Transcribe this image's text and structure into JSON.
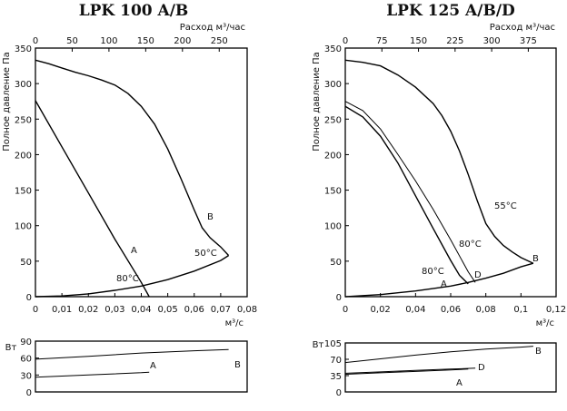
{
  "chart_data": [
    {
      "type": "line",
      "title": "LPK 100 A/B",
      "xlabel": "м³/с",
      "ylabel": "Полное давление Па",
      "x2label": "Расход м³/час",
      "xlim": [
        0,
        0.08
      ],
      "ylim": [
        0,
        350
      ],
      "x2lim": [
        0,
        288
      ],
      "xticks": [
        "0",
        "0,01",
        "0,02",
        "0,03",
        "0,04",
        "0,05",
        "0,06",
        "0,07",
        "0,08"
      ],
      "x2ticks": [
        "0",
        "50",
        "100",
        "150",
        "200",
        "250"
      ],
      "yticks": [
        "0",
        "50",
        "100",
        "150",
        "200",
        "250",
        "300",
        "350"
      ],
      "grid": false,
      "series": [
        {
          "name": "B",
          "x": [
            0,
            0.005,
            0.01,
            0.015,
            0.02,
            0.025,
            0.03,
            0.035,
            0.04,
            0.045,
            0.05,
            0.055,
            0.06,
            0.063,
            0.066,
            0.07,
            0.073
          ],
          "y": [
            333,
            328,
            322,
            316,
            311,
            305,
            298,
            286,
            268,
            243,
            208,
            166,
            122,
            97,
            83,
            70,
            58
          ]
        },
        {
          "name": "A",
          "x": [
            0,
            0.01,
            0.02,
            0.03,
            0.04,
            0.043
          ],
          "y": [
            276,
            211,
            146,
            81,
            20,
            0
          ]
        },
        {
          "name": "",
          "x": [
            0,
            0.01,
            0.02,
            0.03,
            0.04,
            0.05,
            0.06,
            0.07,
            0.073
          ],
          "y": [
            0,
            1,
            4,
            9,
            15,
            24,
            36,
            51,
            58
          ]
        }
      ],
      "annotations": [
        "B",
        "A",
        "50°C",
        "80°C"
      ],
      "power": {
        "ylabel": "Вт",
        "ylim": [
          0,
          90
        ],
        "yticks": [
          "0",
          "30",
          "60",
          "90"
        ],
        "series": [
          {
            "name": "B",
            "x": [
              0,
              0.02,
              0.04,
              0.06,
              0.073
            ],
            "y": [
              58,
              63,
              69,
              73,
              75
            ]
          },
          {
            "name": "A",
            "x": [
              0,
              0.02,
              0.04,
              0.043
            ],
            "y": [
              26,
              30,
              34,
              35
            ]
          }
        ]
      }
    },
    {
      "type": "line",
      "title": "LPK 125 A/B/D",
      "xlabel": "м³/с",
      "ylabel": "Полное давление Па",
      "x2label": "Расход м³/час",
      "xlim": [
        0,
        0.12
      ],
      "ylim": [
        0,
        350
      ],
      "x2lim": [
        0,
        432
      ],
      "xticks": [
        "0",
        "0,02",
        "0,04",
        "0,06",
        "0,08",
        "0,1",
        "0,12"
      ],
      "x2ticks": [
        "0",
        "75",
        "150",
        "225",
        "300",
        "375"
      ],
      "yticks": [
        "0",
        "50",
        "100",
        "150",
        "200",
        "250",
        "300",
        "350"
      ],
      "grid": false,
      "series": [
        {
          "name": "B",
          "x": [
            0,
            0.01,
            0.02,
            0.03,
            0.04,
            0.05,
            0.055,
            0.06,
            0.065,
            0.07,
            0.075,
            0.08,
            0.085,
            0.09,
            0.095,
            0.1,
            0.107
          ],
          "y": [
            333,
            330,
            325,
            312,
            295,
            272,
            255,
            233,
            205,
            172,
            136,
            103,
            85,
            72,
            63,
            55,
            47
          ]
        },
        {
          "name": "D",
          "x": [
            0,
            0.01,
            0.02,
            0.03,
            0.04,
            0.05,
            0.06,
            0.07,
            0.074
          ],
          "y": [
            275,
            262,
            236,
            200,
            163,
            123,
            80,
            35,
            20
          ]
        },
        {
          "name": "A",
          "x": [
            0,
            0.01,
            0.02,
            0.03,
            0.04,
            0.05,
            0.06,
            0.065,
            0.07
          ],
          "y": [
            268,
            253,
            226,
            188,
            142,
            96,
            51,
            30,
            18
          ]
        },
        {
          "name": "",
          "x": [
            0,
            0.02,
            0.04,
            0.06,
            0.07,
            0.08,
            0.09,
            0.1,
            0.107
          ],
          "y": [
            0,
            3,
            8,
            15,
            20,
            26,
            33,
            42,
            47
          ]
        }
      ],
      "annotations": [
        "B",
        "D",
        "A",
        "55°C",
        "80°C",
        "80°C"
      ],
      "power": {
        "ylabel": "Вт",
        "ylim": [
          0,
          105
        ],
        "yticks": [
          "0",
          "35",
          "70",
          "105"
        ],
        "series": [
          {
            "name": "B",
            "x": [
              0,
              0.02,
              0.04,
              0.06,
              0.08,
              0.1,
              0.107
            ],
            "y": [
              63,
              71,
              79,
              86,
              92,
              96,
              98
            ]
          },
          {
            "name": "D",
            "x": [
              0,
              0.02,
              0.04,
              0.06,
              0.074
            ],
            "y": [
              40,
              43,
              46,
              49,
              51
            ]
          },
          {
            "name": "A",
            "x": [
              0,
              0.02,
              0.04,
              0.06,
              0.07
            ],
            "y": [
              38,
              41,
              44,
              47,
              49
            ]
          }
        ]
      }
    }
  ]
}
